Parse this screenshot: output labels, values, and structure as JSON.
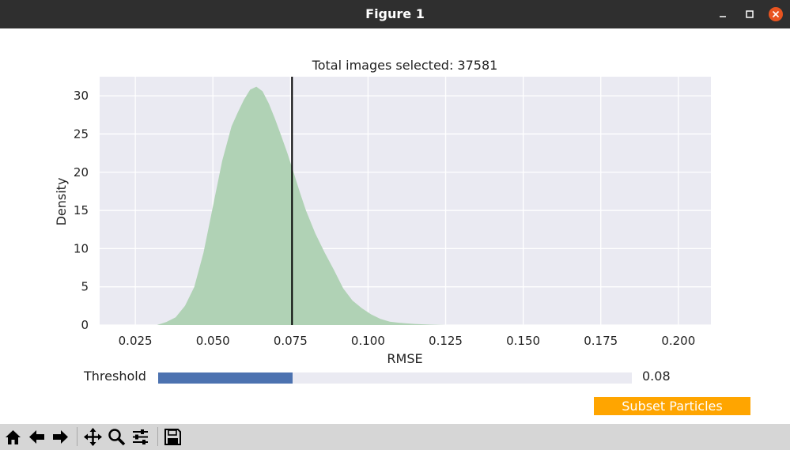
{
  "window": {
    "title": "Figure 1"
  },
  "chart_data": {
    "type": "area",
    "title": "Total images selected: 37581",
    "xlabel": "RMSE",
    "ylabel": "Density",
    "xlim": [
      0.0135,
      0.2105
    ],
    "ylim": [
      0,
      32.5
    ],
    "x_ticks": [
      "0.025",
      "0.050",
      "0.075",
      "0.100",
      "0.125",
      "0.150",
      "0.175",
      "0.200"
    ],
    "y_ticks": [
      "0",
      "5",
      "10",
      "15",
      "20",
      "25",
      "30"
    ],
    "x_tick_values": [
      0.025,
      0.05,
      0.075,
      0.1,
      0.125,
      0.15,
      0.175,
      0.2
    ],
    "y_tick_values": [
      0,
      5,
      10,
      15,
      20,
      25,
      30
    ],
    "grid": true,
    "series": [
      {
        "color": "#b0d2b5",
        "x": [
          0.032,
          0.035,
          0.038,
          0.041,
          0.044,
          0.047,
          0.05,
          0.053,
          0.056,
          0.058,
          0.06,
          0.062,
          0.064,
          0.066,
          0.068,
          0.07,
          0.072,
          0.074,
          0.076,
          0.078,
          0.08,
          0.083,
          0.086,
          0.089,
          0.092,
          0.095,
          0.098,
          0.101,
          0.104,
          0.107,
          0.11,
          0.115,
          0.12,
          0.125,
          0.13
        ],
        "y": [
          0.0,
          0.4,
          1.0,
          2.5,
          5.0,
          9.5,
          15.5,
          21.5,
          26.0,
          27.8,
          29.5,
          30.8,
          31.2,
          30.6,
          29.0,
          27.0,
          24.8,
          22.5,
          20.0,
          17.4,
          15.0,
          12.0,
          9.5,
          7.2,
          4.8,
          3.2,
          2.2,
          1.4,
          0.8,
          0.45,
          0.3,
          0.15,
          0.05,
          0.0,
          0.0
        ]
      }
    ],
    "threshold_line": 0.0755
  },
  "slider": {
    "label": "Threshold",
    "value_text": "0.08",
    "fraction": 0.283
  },
  "button": {
    "label": "Subset Particles"
  },
  "toolbar": {
    "icons": [
      "home-icon",
      "back-icon",
      "forward-icon",
      "pan-icon",
      "zoom-icon",
      "configure-icon",
      "save-icon"
    ]
  }
}
